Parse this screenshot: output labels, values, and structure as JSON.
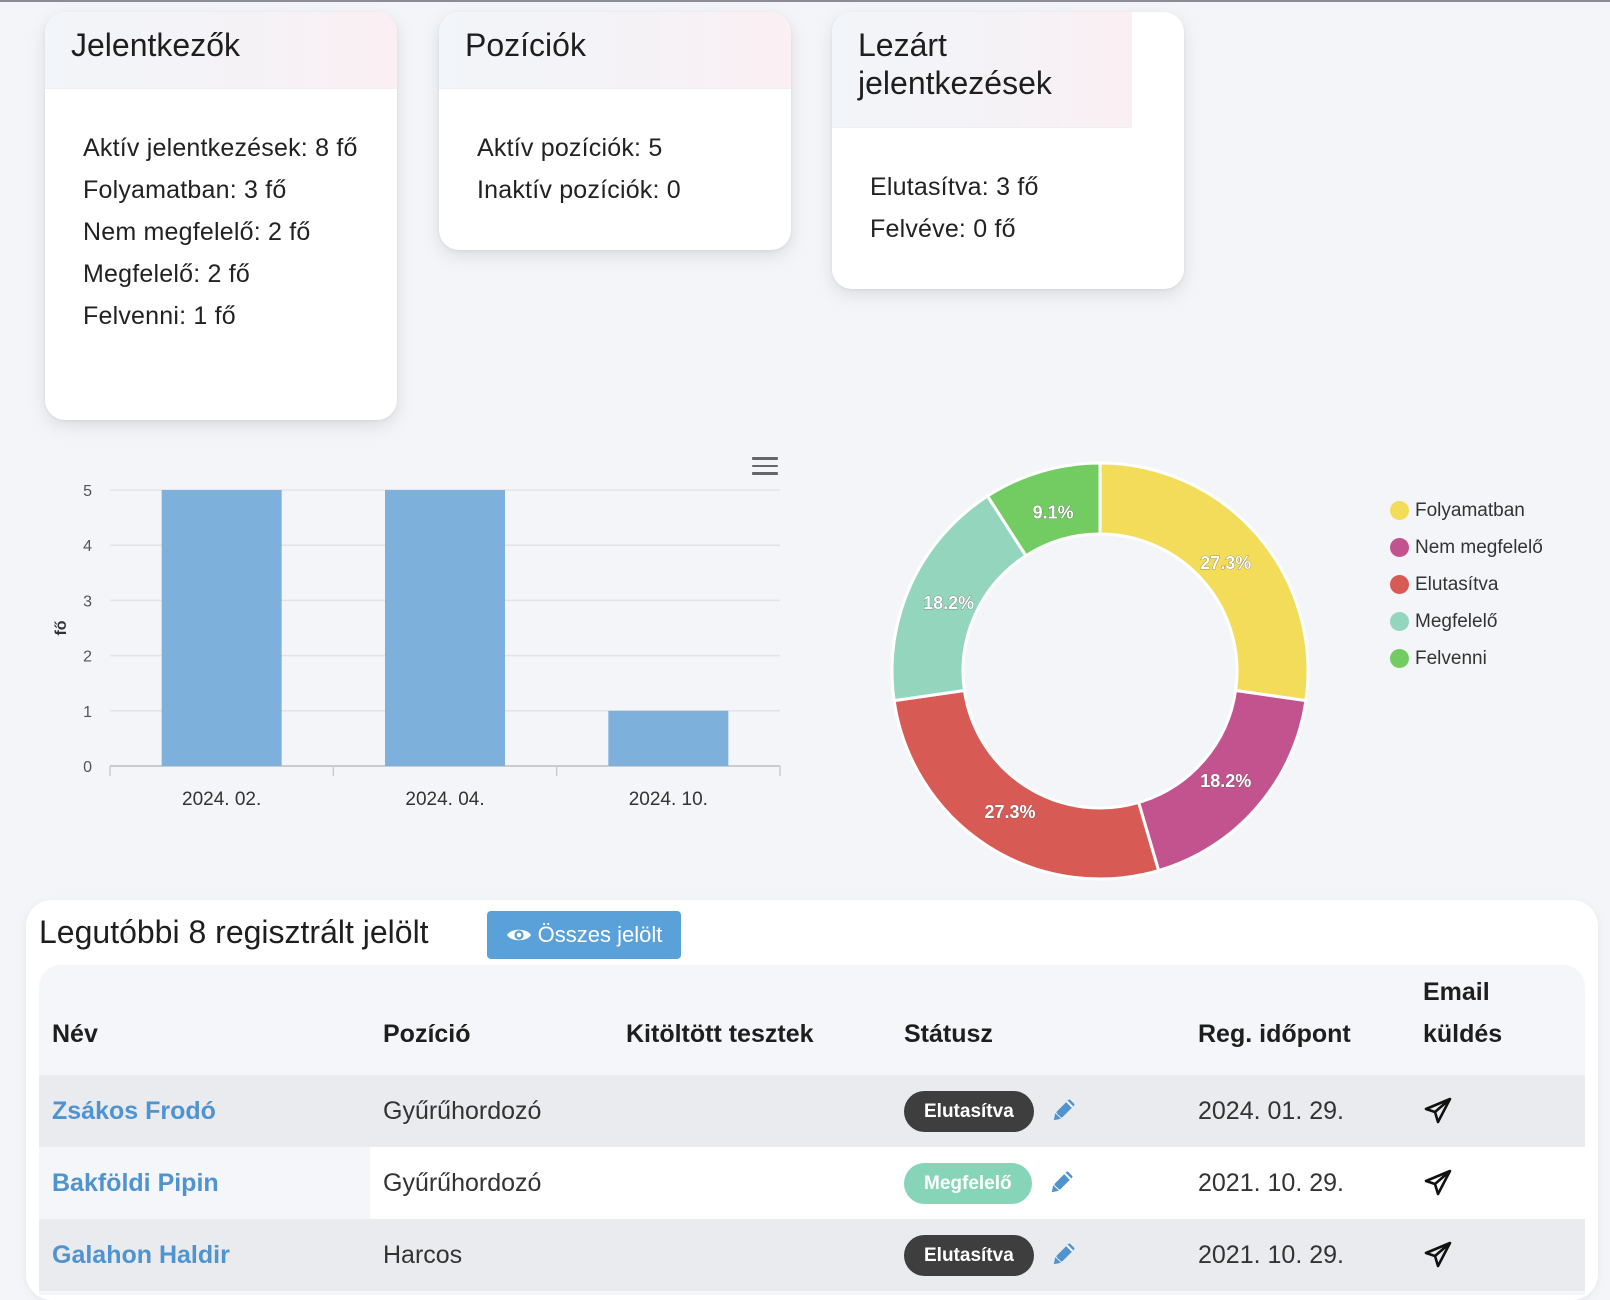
{
  "cards": {
    "applicants": {
      "title": "Jelentkezők",
      "lines": [
        "Aktív jelentkezések: 8 fő",
        "Folyamatban: 3 fő",
        "Nem megfelelő: 2 fő",
        "Megfelelő: 2 fő",
        "Felvenni: 1 fő"
      ]
    },
    "positions": {
      "title": "Pozíciók",
      "lines": [
        "Aktív pozíciók: 5",
        "Inaktív pozíciók: 0"
      ]
    },
    "closed": {
      "title": "Lezárt jelentkezések",
      "lines": [
        "Elutasítva: 3 fő",
        "Felvéve: 0 fő"
      ]
    }
  },
  "chart_data": [
    {
      "type": "bar",
      "categories": [
        "2024. 02.",
        "2024. 04.",
        "2024. 10."
      ],
      "values": [
        5,
        5,
        1
      ],
      "ylabel": "fő",
      "ylim": [
        0,
        5
      ],
      "yticks": [
        0,
        1,
        2,
        3,
        4,
        5
      ],
      "grid": true,
      "color": "#7db1db"
    },
    {
      "type": "pie",
      "donut": true,
      "labels": [
        "Folyamatban",
        "Nem megfelelő",
        "Elutasítva",
        "Megfelelő",
        "Felvenni"
      ],
      "values": [
        27.3,
        18.2,
        27.3,
        18.2,
        9.1
      ],
      "data_labels": [
        "27.3%",
        "18.2%",
        "27.3%",
        "18.2%",
        "9.1%"
      ],
      "colors": [
        "#f3dc5a",
        "#c2538e",
        "#d85a55",
        "#93d6bd",
        "#72cc62"
      ],
      "legend": "right"
    }
  ],
  "table": {
    "title": "Legutóbbi 8 regisztrált jelölt",
    "all_button": "Összes jelölt",
    "columns": [
      "Név",
      "Pozíció",
      "Kitöltött tesztek",
      "Státusz",
      "Reg. időpont",
      "Email küldés"
    ],
    "rows": [
      {
        "name": "Zsákos Frodó",
        "position": "Gyűrűhordozó",
        "tests": "",
        "status": "Elutasítva",
        "status_color": "#3e3e3e",
        "date": "2024. 01. 29."
      },
      {
        "name": "Bakföldi Pipin",
        "position": "Gyűrűhordozó",
        "tests": "",
        "status": "Megfelelő",
        "status_color": "#86d5b8",
        "date": "2021. 10. 29."
      },
      {
        "name": "Galahon Haldir",
        "position": "Harcos",
        "tests": "",
        "status": "Elutasítva",
        "status_color": "#3e3e3e",
        "date": "2021. 10. 29."
      }
    ]
  }
}
